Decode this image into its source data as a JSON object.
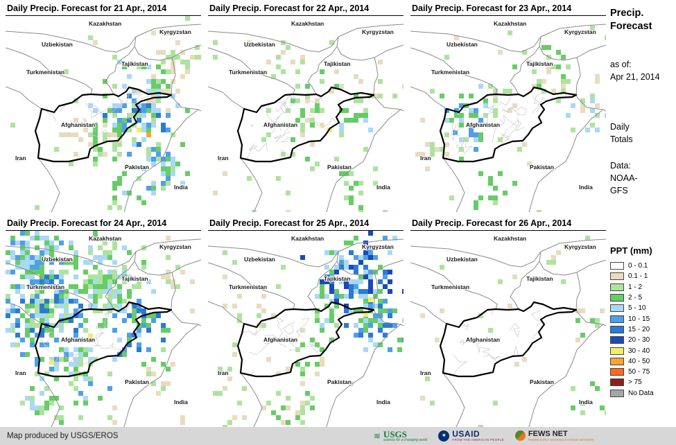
{
  "panels": [
    {
      "title": "Daily Precip. Forecast for 21 Apr., 2014",
      "seed": 101,
      "noise": {
        "p": 0.02,
        "colors": [
          "tan",
          "lightgreen"
        ]
      },
      "blobs": [
        [
          185,
          150,
          55,
          0.8,
          [
            "green",
            "lightblue",
            "blue",
            "lightgreen",
            "midblue"
          ]
        ],
        [
          215,
          105,
          45,
          0.65,
          [
            "lightgreen",
            "green",
            "lightblue",
            "tan"
          ]
        ],
        [
          150,
          175,
          45,
          0.55,
          [
            "lightgreen",
            "green",
            "tan"
          ]
        ],
        [
          228,
          215,
          42,
          0.6,
          [
            "lightblue",
            "blue",
            "green",
            "lightgreen"
          ]
        ],
        [
          245,
          62,
          38,
          0.45,
          [
            "tan",
            "lightgreen"
          ]
        ],
        [
          108,
          168,
          40,
          0.35,
          [
            "lightgreen",
            "tan"
          ]
        ],
        [
          172,
          250,
          35,
          0.4,
          [
            "lightblue",
            "lightgreen",
            "green"
          ]
        ]
      ],
      "spots": [
        [
          203,
          168,
          "orange"
        ],
        [
          189,
          161,
          "yellow"
        ]
      ]
    },
    {
      "title": "Daily Precip. Forecast for 22 Apr., 2014",
      "seed": 102,
      "noise": {
        "p": 0.018,
        "colors": [
          "tan",
          "lightgreen"
        ]
      },
      "blobs": [
        [
          150,
          140,
          60,
          0.32,
          [
            "lightgreen",
            "tan",
            "green"
          ]
        ],
        [
          200,
          150,
          40,
          0.38,
          [
            "lightgreen",
            "green",
            "lightblue"
          ]
        ],
        [
          110,
          62,
          40,
          0.22,
          [
            "tan",
            "lightgreen"
          ]
        ],
        [
          205,
          232,
          34,
          0.45,
          [
            "green",
            "lightgreen"
          ]
        ],
        [
          252,
          100,
          30,
          0.28,
          [
            "tan",
            "lightgreen"
          ]
        ]
      ],
      "spots": [
        [
          172,
          161,
          "yellow"
        ]
      ]
    },
    {
      "title": "Daily Precip. Forecast for 23 Apr., 2014",
      "seed": 103,
      "noise": {
        "p": 0.016,
        "colors": [
          "tan",
          "lightgreen"
        ]
      },
      "blobs": [
        [
          85,
          150,
          45,
          0.55,
          [
            "green",
            "lightgreen",
            "lightblue",
            "blue"
          ]
        ],
        [
          130,
          130,
          35,
          0.35,
          [
            "lightgreen",
            "tan"
          ]
        ],
        [
          200,
          85,
          45,
          0.4,
          [
            "lightgreen",
            "green",
            "tan"
          ]
        ],
        [
          252,
          140,
          35,
          0.28,
          [
            "tan",
            "lightgreen",
            "lightblue"
          ]
        ],
        [
          120,
          252,
          30,
          0.32,
          [
            "green",
            "lightgreen"
          ]
        ],
        [
          40,
          190,
          30,
          0.25,
          [
            "lightgreen",
            "tan"
          ]
        ]
      ],
      "spots": [
        [
          61,
          165,
          "blue"
        ]
      ]
    },
    {
      "title": "Daily Precip. Forecast for 24 Apr., 2014",
      "seed": 104,
      "noise": {
        "p": 0.03,
        "colors": [
          "tan",
          "lightgreen"
        ]
      },
      "blobs": [
        [
          55,
          110,
          75,
          0.8,
          [
            "green",
            "lightblue",
            "blue",
            "lightgreen",
            "midblue"
          ]
        ],
        [
          140,
          70,
          70,
          0.75,
          [
            "lightgreen",
            "green",
            "lightblue"
          ]
        ],
        [
          35,
          38,
          50,
          0.75,
          [
            "lightblue",
            "blue",
            "green"
          ]
        ],
        [
          100,
          185,
          60,
          0.6,
          [
            "green",
            "lightgreen",
            "lightblue",
            "blue"
          ]
        ],
        [
          185,
          135,
          50,
          0.55,
          [
            "lightblue",
            "blue",
            "green",
            "midblue"
          ]
        ],
        [
          55,
          250,
          45,
          0.5,
          [
            "lightgreen",
            "green",
            "lightblue"
          ]
        ],
        [
          230,
          200,
          40,
          0.35,
          [
            "tan",
            "lightgreen",
            "green"
          ]
        ],
        [
          250,
          60,
          35,
          0.35,
          [
            "tan",
            "lightgreen"
          ]
        ]
      ],
      "spots": [
        [
          63,
          186,
          "yellow"
        ],
        [
          119,
          148,
          "yellow"
        ]
      ]
    },
    {
      "title": "Daily Precip. Forecast for 25 Apr., 2014",
      "seed": 105,
      "noise": {
        "p": 0.022,
        "colors": [
          "tan",
          "lightgreen"
        ]
      },
      "blobs": [
        [
          215,
          75,
          60,
          0.8,
          [
            "lightblue",
            "blue",
            "midblue",
            "darkblue",
            "green"
          ]
        ],
        [
          240,
          130,
          45,
          0.7,
          [
            "blue",
            "midblue",
            "lightblue",
            "green"
          ]
        ],
        [
          170,
          110,
          40,
          0.45,
          [
            "lightgreen",
            "green",
            "lightblue"
          ]
        ],
        [
          150,
          175,
          45,
          0.35,
          [
            "lightgreen",
            "green",
            "tan"
          ]
        ],
        [
          120,
          255,
          40,
          0.35,
          [
            "tan",
            "lightgreen",
            "green"
          ]
        ],
        [
          75,
          120,
          35,
          0.25,
          [
            "tan",
            "lightgreen"
          ]
        ]
      ],
      "spots": [
        [
          224,
          117,
          "yellow"
        ],
        [
          231,
          96,
          "yellow"
        ]
      ]
    },
    {
      "title": "Daily Precip. Forecast for 26 Apr., 2014",
      "seed": 106,
      "noise": {
        "p": 0.01,
        "colors": [
          "tan",
          "lightgreen"
        ]
      },
      "blobs": [
        [
          265,
          140,
          40,
          0.3,
          [
            "lightgreen",
            "green",
            "tan"
          ]
        ],
        [
          210,
          45,
          30,
          0.25,
          [
            "tan",
            "lightgreen"
          ]
        ],
        [
          265,
          250,
          35,
          0.28,
          [
            "green",
            "lightgreen"
          ]
        ],
        [
          120,
          240,
          25,
          0.12,
          [
            "tan",
            "lightgreen"
          ]
        ],
        [
          30,
          130,
          25,
          0.1,
          [
            "tan"
          ]
        ]
      ],
      "spots": [
        [
          150,
          189,
          "tan"
        ]
      ]
    }
  ],
  "map": {
    "countries": [
      "Kazakhstan",
      "Kyrgyzstan",
      "Uzbekistan",
      "Tajikistan",
      "Turkmenistan",
      "Afghanistan",
      "Iran",
      "Pakistan",
      "India"
    ]
  },
  "palette": {
    "white": "#FFFFFF",
    "tan": "#E8DCBF",
    "lightgreen": "#AEE39E",
    "green": "#66CC66",
    "lightblue": "#A9D9F5",
    "blue": "#4F9FE8",
    "midblue": "#2B7BD4",
    "darkblue": "#1A49B8",
    "yellow": "#F2EC6A",
    "orange": "#FFA431",
    "redorange": "#FF6A1F",
    "darkred": "#8F1D1D",
    "nodata": "#A6A6A6"
  },
  "sidebar": {
    "title1": "Precip.",
    "title2": "Forecast",
    "asof_label": "as of:",
    "asof_date": "Apr 21, 2014",
    "totals1": "Daily",
    "totals2": "Totals",
    "data_label": "Data:",
    "data1": "NOAA-",
    "data2": "GFS"
  },
  "legend": {
    "title": "PPT (mm)",
    "items": [
      {
        "label": "0 - 0.1",
        "color": "#FFFFFF"
      },
      {
        "label": "0.1 - 1",
        "color": "#E8DCBF"
      },
      {
        "label": "1 - 2",
        "color": "#AEE39E"
      },
      {
        "label": "2 - 5",
        "color": "#66CC66"
      },
      {
        "label": "5 - 10",
        "color": "#A9D9F5"
      },
      {
        "label": "10 - 15",
        "color": "#4F9FE8"
      },
      {
        "label": "15 - 20",
        "color": "#2B7BD4"
      },
      {
        "label": "20 - 30",
        "color": "#1A49B8"
      },
      {
        "label": "30 - 40",
        "color": "#F2EC6A"
      },
      {
        "label": "40 - 50",
        "color": "#FFA431"
      },
      {
        "label": "50 - 75",
        "color": "#FF6A1F"
      },
      {
        "label": "> 75",
        "color": "#8F1D1D"
      },
      {
        "label": "No Data",
        "color": "#A6A6A6"
      }
    ]
  },
  "footer": {
    "credit": "Map produced by USGS/EROS",
    "usgs": {
      "name": "USGS",
      "tagline": "science for a changing world"
    },
    "usaid": {
      "name": "USAID",
      "tagline": "FROM THE AMERICAN PEOPLE"
    },
    "fewsnet": {
      "name": "FEWS NET",
      "tagline": "FAMINE EARLY WARNING SYSTEMS NETWORK"
    }
  }
}
